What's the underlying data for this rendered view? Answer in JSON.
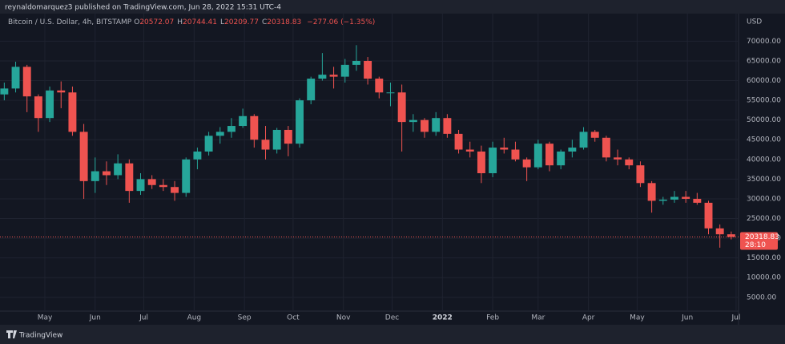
{
  "header": {
    "publisher": "reynaldomarquez3 published on TradingView.com, Jun 28, 2022 15:31 UTC-4"
  },
  "footer": {
    "brand": "TradingView"
  },
  "chart_data": {
    "type": "candlestick",
    "title": "Bitcoin / U.S. Dollar, 4h, BITSTAMP",
    "ohlc": [
      {
        "label": "O",
        "value": 20572.07
      },
      {
        "label": "H",
        "value": 20744.41
      },
      {
        "label": "L",
        "value": 20209.77
      },
      {
        "label": "C",
        "value": 20318.83
      }
    ],
    "change": "−277.06 (−1.35%)",
    "currency": "USD",
    "countdown": "28:10",
    "up_color": "#26a69a",
    "down_color": "#ef5350",
    "x": [
      0,
      7,
      14,
      21,
      28,
      35,
      42,
      49,
      56,
      63,
      70,
      77,
      84,
      91,
      98,
      105,
      112,
      119,
      126,
      133,
      140,
      147,
      154,
      161,
      168,
      175,
      182,
      189,
      196,
      203,
      210,
      217,
      224,
      231,
      238,
      245,
      252,
      259,
      266,
      273,
      280,
      287,
      294,
      301,
      308,
      315,
      322,
      329,
      336,
      343,
      350,
      357,
      364,
      371,
      378,
      385,
      392,
      399,
      406,
      413,
      420,
      427,
      434,
      441,
      448
    ],
    "open": [
      56500,
      58000,
      63500,
      56000,
      50500,
      57500,
      57000,
      47000,
      34500,
      37000,
      36000,
      39000,
      32000,
      35000,
      33500,
      33000,
      31500,
      40000,
      42000,
      46000,
      47000,
      48500,
      51000,
      45000,
      42500,
      47500,
      44000,
      55000,
      60500,
      61500,
      61000,
      64000,
      65000,
      60500,
      57000,
      57000,
      49500,
      50000,
      47000,
      50500,
      46500,
      42500,
      42000,
      36500,
      43000,
      42500,
      40000,
      38000,
      44000,
      38500,
      42000,
      43000,
      47000,
      45500,
      40500,
      40000,
      38500,
      34000,
      29500,
      29800,
      30500,
      30000,
      29000,
      22500,
      21000
    ],
    "high": [
      59500,
      64800,
      64000,
      56500,
      58500,
      59800,
      58500,
      49000,
      40500,
      39500,
      41300,
      40000,
      36500,
      36000,
      35000,
      34500,
      40500,
      43000,
      47000,
      48200,
      50500,
      52900,
      51500,
      48500,
      48000,
      48500,
      55500,
      61000,
      67000,
      63500,
      65500,
      69000,
      66000,
      61000,
      59500,
      59000,
      51500,
      50500,
      52000,
      51500,
      47500,
      44500,
      43500,
      44500,
      45500,
      44500,
      40500,
      45000,
      44500,
      42500,
      45000,
      48200,
      47500,
      46000,
      42500,
      40500,
      39500,
      34500,
      30500,
      32000,
      32000,
      31500,
      29500,
      23500,
      21700
    ],
    "low": [
      55000,
      57000,
      52000,
      47000,
      49500,
      53000,
      46000,
      30000,
      31500,
      33500,
      35000,
      29000,
      31000,
      32500,
      32000,
      29500,
      30500,
      37500,
      41000,
      44000,
      45500,
      48000,
      43000,
      40000,
      41500,
      40800,
      43000,
      54000,
      60000,
      58000,
      59500,
      62500,
      59000,
      55500,
      53500,
      42000,
      47000,
      45500,
      46000,
      45500,
      41500,
      40500,
      34000,
      35500,
      41500,
      39500,
      34500,
      37500,
      37000,
      37500,
      40500,
      42500,
      44500,
      39500,
      38500,
      37500,
      33000,
      26500,
      28500,
      29000,
      29000,
      28500,
      21000,
      17600,
      19700
    ],
    "close": [
      58000,
      63500,
      56000,
      50500,
      57500,
      57000,
      47000,
      34500,
      37000,
      36000,
      39000,
      32000,
      35000,
      33500,
      33000,
      31500,
      40000,
      42000,
      46000,
      47000,
      48500,
      51000,
      45000,
      42500,
      47500,
      44000,
      55000,
      60500,
      61500,
      61000,
      64000,
      65000,
      60500,
      57000,
      57000,
      49500,
      50000,
      47000,
      50500,
      46500,
      42500,
      42000,
      36500,
      43000,
      42500,
      40000,
      38000,
      44000,
      38500,
      42000,
      43000,
      47000,
      45500,
      40500,
      40000,
      38500,
      34000,
      29500,
      29800,
      30500,
      30000,
      29000,
      22500,
      21000,
      20318.83
    ],
    "xlim": [
      0,
      453
    ],
    "xticks": [
      {
        "value": 25,
        "label": "May"
      },
      {
        "value": 56,
        "label": "Jun"
      },
      {
        "value": 86,
        "label": "Jul"
      },
      {
        "value": 117,
        "label": "Aug"
      },
      {
        "value": 148,
        "label": "Sep"
      },
      {
        "value": 178,
        "label": "Oct"
      },
      {
        "value": 209,
        "label": "Nov"
      },
      {
        "value": 239,
        "label": "Dec"
      },
      {
        "value": 270,
        "label": "2022"
      },
      {
        "value": 301,
        "label": "Feb"
      },
      {
        "value": 329,
        "label": "Mar"
      },
      {
        "value": 360,
        "label": "Apr"
      },
      {
        "value": 390,
        "label": "May"
      },
      {
        "value": 421,
        "label": "Jun"
      },
      {
        "value": 451,
        "label": "Jul"
      }
    ],
    "ylim": [
      1500,
      77000
    ],
    "yticks": [
      {
        "value": 5000,
        "label": "5000.00"
      },
      {
        "value": 10000,
        "label": "10000.00"
      },
      {
        "value": 15000,
        "label": "15000.00"
      },
      {
        "value": 20000,
        "label": "20000.00"
      },
      {
        "value": 25000,
        "label": "25000.00"
      },
      {
        "value": 30000,
        "label": "30000.00"
      },
      {
        "value": 35000,
        "label": "35000.00"
      },
      {
        "value": 40000,
        "label": "40000.00"
      },
      {
        "value": 45000,
        "label": "45000.00"
      },
      {
        "value": 50000,
        "label": "50000.00"
      },
      {
        "value": 55000,
        "label": "55000.00"
      },
      {
        "value": 60000,
        "label": "60000.00"
      },
      {
        "value": 65000,
        "label": "65000.00"
      },
      {
        "value": 70000,
        "label": "70000.00"
      }
    ],
    "grid": true
  }
}
